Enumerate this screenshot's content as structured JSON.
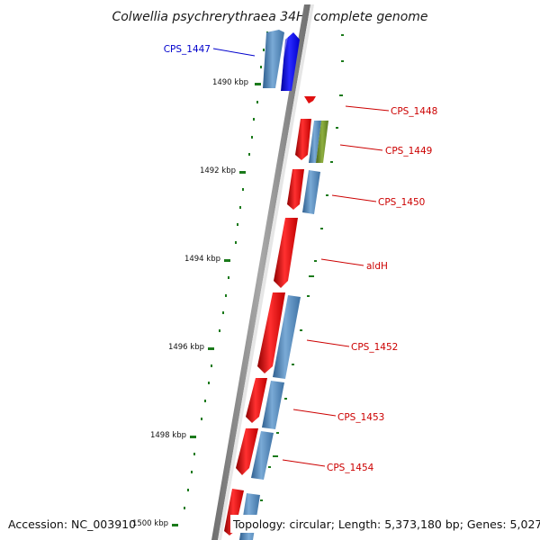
{
  "title": "Colwellia psychrerythraea 34H, complete genome",
  "accession": "Accession: NC_003910",
  "topology": "Topology: circular; Length: 5,373,180 bp; Genes: 5,027",
  "colors": {
    "backbone": "#8a8a8a",
    "forward_cds": "#4f86b8",
    "reverse_cds": "#e01010",
    "highlight_cds": "#0000ee",
    "other_cds": "#6b8e23",
    "tick": "#1b7a1b",
    "gene_label": "#cc0000",
    "highlight_label": "#0000cc"
  },
  "ruler": [
    {
      "label": "1490 kbp",
      "kbp": 1490
    },
    {
      "label": "1492 kbp",
      "kbp": 1492
    },
    {
      "label": "1494 kbp",
      "kbp": 1494
    },
    {
      "label": "1496 kbp",
      "kbp": 1496
    },
    {
      "label": "1498 kbp",
      "kbp": 1498
    },
    {
      "label": "1500 kbp",
      "kbp": 1500
    }
  ],
  "gene_labels": [
    {
      "text": "CPS_1447",
      "highlight": true
    },
    {
      "text": "CPS_1448",
      "highlight": false
    },
    {
      "text": "CPS_1449",
      "highlight": false
    },
    {
      "text": "CPS_1450",
      "highlight": false
    },
    {
      "text": "aldH",
      "highlight": false
    },
    {
      "text": "CPS_1452",
      "highlight": false
    },
    {
      "text": "CPS_1453",
      "highlight": false
    },
    {
      "text": "CPS_1454",
      "highlight": false
    }
  ]
}
